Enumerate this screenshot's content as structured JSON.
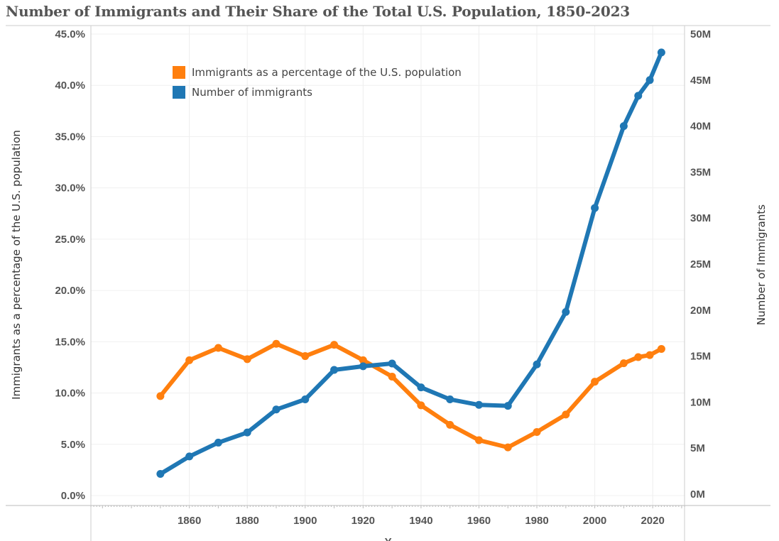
{
  "title": "Number of Immigrants and Their Share of the Total U.S. Population, 1850-2023",
  "chart_data": {
    "type": "line",
    "title": "Number of Immigrants and Their Share of the Total U.S. Population, 1850-2023",
    "x": [
      1850,
      1860,
      1870,
      1880,
      1890,
      1900,
      1910,
      1920,
      1930,
      1940,
      1950,
      1960,
      1970,
      1980,
      1990,
      2000,
      2010,
      2015,
      2019,
      2023
    ],
    "xlabel": "Y...",
    "xlim": [
      1826,
      2031
    ],
    "x_ticks": [
      1860,
      1880,
      1900,
      1920,
      1940,
      1960,
      1980,
      2000,
      2020
    ],
    "ylabel_left": "Immigrants as a percentage of the U.S. population",
    "ylabel_right": "Number of Immigrants",
    "ylim_left": [
      0,
      45
    ],
    "ylim_right": [
      0,
      50
    ],
    "left_ticks": [
      "0.0%",
      "5.0%",
      "10.0%",
      "15.0%",
      "20.0%",
      "25.0%",
      "30.0%",
      "35.0%",
      "40.0%",
      "45.0%"
    ],
    "left_tick_values": [
      0,
      5,
      10,
      15,
      20,
      25,
      30,
      35,
      40,
      45
    ],
    "right_ticks": [
      "0M",
      "5M",
      "10M",
      "15M",
      "20M",
      "25M",
      "30M",
      "35M",
      "40M",
      "45M",
      "50M"
    ],
    "right_tick_values": [
      0,
      5,
      10,
      15,
      20,
      25,
      30,
      35,
      40,
      45,
      50
    ],
    "grid": true,
    "legend_position": "top-left",
    "series": [
      {
        "name": "Immigrants as a percentage of the U.S. population",
        "axis": "left",
        "color": "#ff7f0e",
        "values": [
          9.7,
          13.2,
          14.4,
          13.3,
          14.8,
          13.6,
          14.7,
          13.2,
          11.6,
          8.8,
          6.9,
          5.4,
          4.7,
          6.2,
          7.9,
          11.1,
          12.9,
          13.5,
          13.7,
          14.3
        ]
      },
      {
        "name": "Number of immigrants",
        "axis": "right",
        "color": "#1f77b4",
        "values": [
          2.2,
          4.1,
          5.6,
          6.7,
          9.2,
          10.3,
          13.5,
          13.9,
          14.2,
          11.6,
          10.3,
          9.7,
          9.6,
          14.1,
          19.8,
          31.1,
          40.0,
          43.3,
          45.0,
          48.0
        ]
      }
    ]
  }
}
